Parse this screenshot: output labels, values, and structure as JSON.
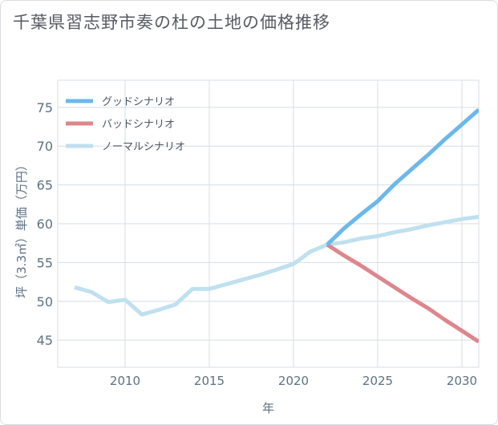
{
  "title": "千葉県習志野市奏の杜の土地の価格推移",
  "chart_data": {
    "type": "line",
    "xlabel": "年",
    "ylabel": "坪（3.3㎡）単価（万円）",
    "xlim": [
      2006,
      2031
    ],
    "ylim": [
      41.5,
      78.5
    ],
    "x_ticks": [
      2010,
      2015,
      2020,
      2025,
      2030
    ],
    "y_ticks": [
      45,
      50,
      55,
      60,
      65,
      70,
      75
    ],
    "grid": true,
    "legend_position": "top-left",
    "colors": {
      "good": "#6cb8ea",
      "bad": "#de868d",
      "normal": "#bfe0ef",
      "grid": "#d5dde5",
      "axis_text": "#5d7183"
    },
    "series": [
      {
        "key": "good",
        "name": "グッドシナリオ",
        "x": [
          2022,
          2023,
          2024,
          2025,
          2026,
          2027,
          2028,
          2029,
          2030,
          2031
        ],
        "values": [
          57.3,
          59.4,
          61.2,
          62.9,
          65.1,
          67.0,
          68.9,
          70.9,
          72.8,
          74.7
        ]
      },
      {
        "key": "bad",
        "name": "バッドシナリオ",
        "x": [
          2022,
          2023,
          2024,
          2025,
          2026,
          2027,
          2028,
          2029,
          2030,
          2031
        ],
        "values": [
          57.3,
          55.9,
          54.6,
          53.2,
          51.8,
          50.4,
          49.1,
          47.6,
          46.2,
          44.8
        ]
      },
      {
        "key": "normal",
        "name": "ノーマルシナリオ",
        "x": [
          2007,
          2008,
          2009,
          2010,
          2011,
          2012,
          2013,
          2014,
          2015,
          2016,
          2017,
          2018,
          2019,
          2020,
          2021,
          2022,
          2023,
          2024,
          2025,
          2026,
          2027,
          2028,
          2029,
          2030,
          2031
        ],
        "values": [
          51.8,
          51.2,
          49.9,
          50.2,
          48.3,
          48.9,
          49.6,
          51.6,
          51.6,
          52.2,
          52.8,
          53.4,
          54.1,
          54.8,
          56.4,
          57.3,
          57.6,
          58.1,
          58.4,
          58.9,
          59.3,
          59.8,
          60.2,
          60.6,
          60.9
        ]
      }
    ]
  }
}
